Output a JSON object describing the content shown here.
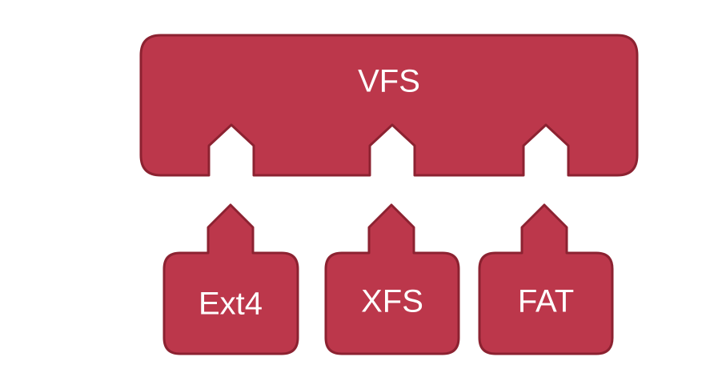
{
  "colors": {
    "fill": "#bc374b",
    "stroke": "#8c2231",
    "text": "#ffffff",
    "background": "#ffffff"
  },
  "vfs": {
    "label": "VFS"
  },
  "filesystems": [
    {
      "label": "Ext4"
    },
    {
      "label": "XFS"
    },
    {
      "label": "FAT"
    }
  ]
}
